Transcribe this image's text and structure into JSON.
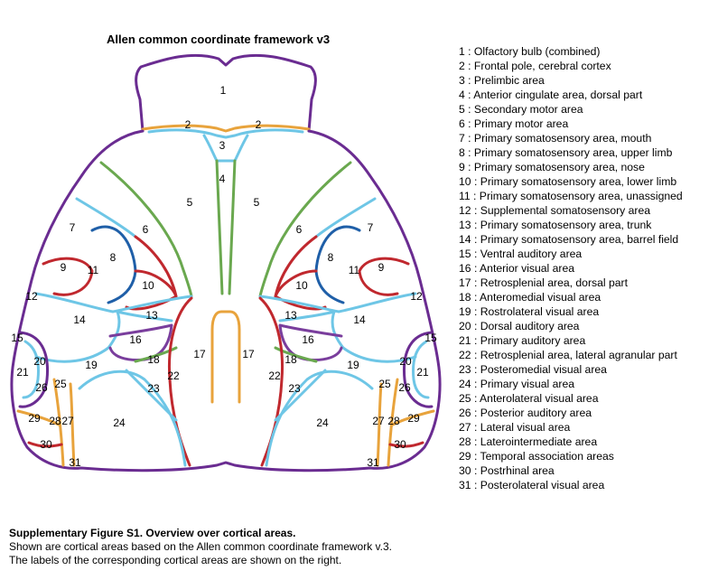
{
  "title": "Allen common coordinate framework v3",
  "colors": {
    "outline": "#6a2c91",
    "red": "#c0282e",
    "green": "#6aa84f",
    "blue": "#1f5fa8",
    "lightblue": "#6ec6e6",
    "orange": "#e8a33c",
    "purple": "#7a3e9d"
  },
  "legend": [
    "1 : Olfactory bulb (combined)",
    "2 : Frontal pole, cerebral cortex",
    "3 : Prelimbic area",
    "4 : Anterior cingulate area, dorsal part",
    "5 : Secondary motor area",
    "6 : Primary motor area",
    "7 : Primary somatosensory area, mouth",
    "8 : Primary somatosensory area, upper limb",
    "9 : Primary somatosensory area, nose",
    "10 : Primary somatosensory area, lower limb",
    "11 : Primary somatosensory area, unassigned",
    "12 : Supplemental somatosensory area",
    "13 : Primary somatosensory area, trunk",
    "14 : Primary somatosensory area, barrel field",
    "15 : Ventral auditory area",
    "16 : Anterior visual area",
    "17 : Retrosplenial area, dorsal part",
    "18 : Anteromedial visual area",
    "19 : Rostrolateral visual area",
    "20 : Dorsal auditory area",
    "21 : Primary auditory area",
    "22 : Retrosplenial area, lateral agranular part",
    "23 : Posteromedial visual area",
    "24 : Primary visual area",
    "25 : Anterolateral visual area",
    "26 : Posterior auditory area",
    "27 : Lateral visual area",
    "28 : Laterointermediate area",
    "29 : Temporal association areas",
    "30 : Postrhinal area",
    "31 : Posterolateral visual area"
  ],
  "area_labels": [
    "1",
    "2",
    "2",
    "3",
    "4",
    "5",
    "5",
    "6",
    "6",
    "7",
    "7",
    "8",
    "8",
    "9",
    "9",
    "10",
    "10",
    "11",
    "11",
    "12",
    "12",
    "13",
    "13",
    "14",
    "14",
    "15",
    "15",
    "16",
    "16",
    "17",
    "17",
    "18",
    "18",
    "19",
    "19",
    "20",
    "20",
    "21",
    "21",
    "22",
    "22",
    "23",
    "23",
    "24",
    "24",
    "25",
    "25",
    "26",
    "26",
    "27",
    "27",
    "28",
    "28",
    "29",
    "29",
    "30",
    "30",
    "31",
    "31"
  ],
  "caption": {
    "title": "Supplementary Figure S1. Overview over cortical areas.",
    "line1": "Shown are cortical areas based on the Allen common coordinate framework v.3.",
    "line2": "The labels of the corresponding cortical areas are shown on the right."
  }
}
